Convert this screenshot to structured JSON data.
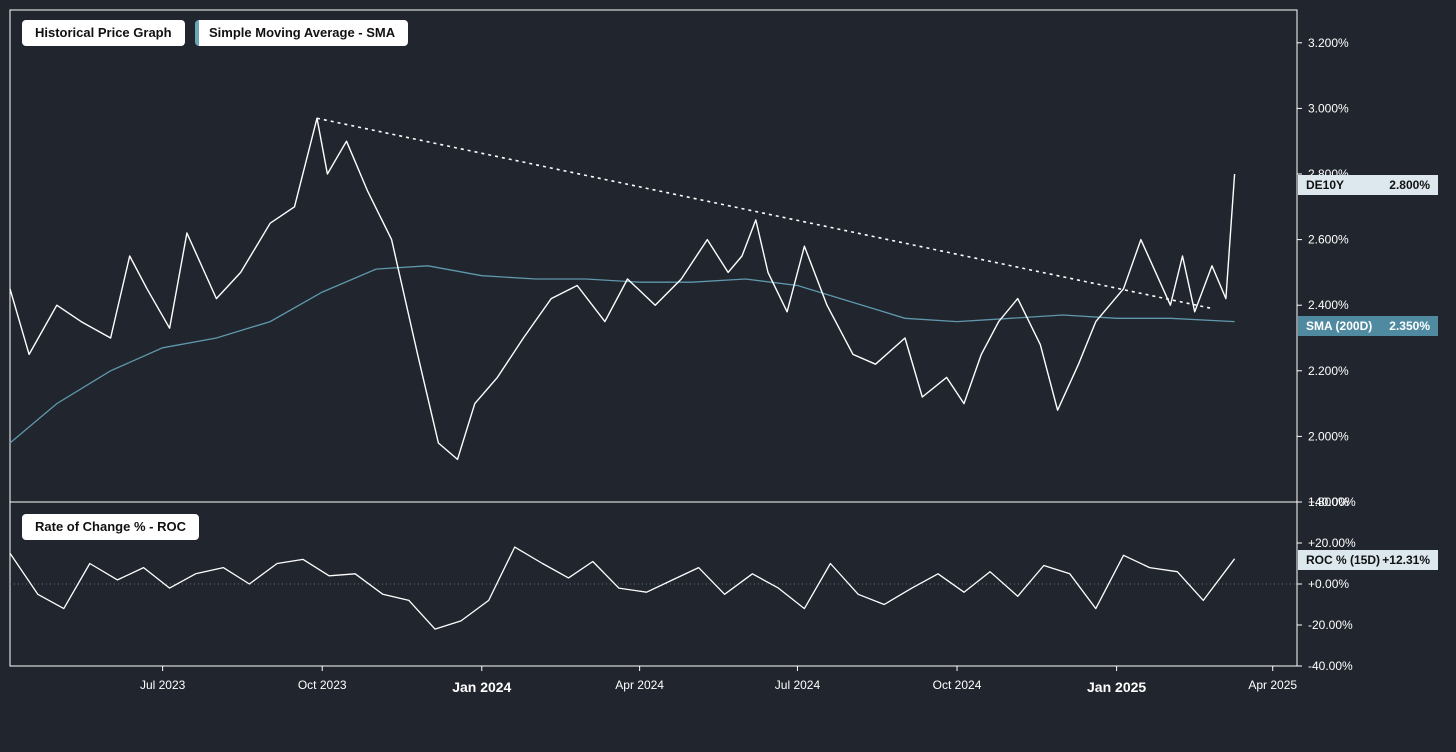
{
  "legend": {
    "price": "Historical Price Graph",
    "sma": "Simple Moving Average - SMA",
    "roc": "Rate of Change % - ROC"
  },
  "tags": {
    "price_name": "DE10Y",
    "price_value": "2.800%",
    "sma_name": "SMA (200D)",
    "sma_value": "2.350%",
    "roc_name": "ROC % (15D)",
    "roc_value": "+12.31%"
  },
  "colors": {
    "background": "#21252d",
    "price": "#ffffff",
    "sma": "#5f98ad",
    "frame": "#ffffff"
  },
  "chart_data": [
    {
      "type": "line",
      "series": [
        {
          "name": "DE10Y",
          "x": [
            "2023-04-04",
            "2023-04-15",
            "2023-05-01",
            "2023-05-15",
            "2023-06-01",
            "2023-06-12",
            "2023-06-22",
            "2023-07-05",
            "2023-07-15",
            "2023-08-01",
            "2023-08-15",
            "2023-09-01",
            "2023-09-15",
            "2023-09-28",
            "2023-10-04",
            "2023-10-15",
            "2023-10-27",
            "2023-11-10",
            "2023-11-25",
            "2023-12-07",
            "2023-12-18",
            "2023-12-28",
            "2024-01-10",
            "2024-01-25",
            "2024-02-10",
            "2024-02-25",
            "2024-03-12",
            "2024-03-25",
            "2024-04-10",
            "2024-04-25",
            "2024-05-10",
            "2024-05-22",
            "2024-05-30",
            "2024-06-07",
            "2024-06-14",
            "2024-06-25",
            "2024-07-05",
            "2024-07-18",
            "2024-08-02",
            "2024-08-15",
            "2024-09-01",
            "2024-09-11",
            "2024-09-25",
            "2024-10-05",
            "2024-10-15",
            "2024-10-25",
            "2024-11-05",
            "2024-11-18",
            "2024-11-28",
            "2024-12-10",
            "2024-12-20",
            "2025-01-05",
            "2025-01-15",
            "2025-02-01",
            "2025-02-08",
            "2025-02-15",
            "2025-02-25",
            "2025-03-05",
            "2025-03-10"
          ],
          "y": [
            2.45,
            2.25,
            2.4,
            2.35,
            2.3,
            2.55,
            2.45,
            2.33,
            2.62,
            2.42,
            2.5,
            2.65,
            2.7,
            2.97,
            2.8,
            2.9,
            2.75,
            2.6,
            2.25,
            1.98,
            1.93,
            2.1,
            2.18,
            2.3,
            2.42,
            2.46,
            2.35,
            2.48,
            2.4,
            2.48,
            2.6,
            2.5,
            2.55,
            2.66,
            2.5,
            2.38,
            2.58,
            2.4,
            2.25,
            2.22,
            2.3,
            2.12,
            2.18,
            2.1,
            2.25,
            2.35,
            2.42,
            2.28,
            2.08,
            2.22,
            2.35,
            2.45,
            2.6,
            2.4,
            2.55,
            2.38,
            2.52,
            2.42,
            2.8
          ]
        },
        {
          "name": "SMA (200D)",
          "x": [
            "2023-04-04",
            "2023-05-01",
            "2023-06-01",
            "2023-07-01",
            "2023-08-01",
            "2023-09-01",
            "2023-10-01",
            "2023-11-01",
            "2023-12-01",
            "2024-01-01",
            "2024-02-01",
            "2024-03-01",
            "2024-04-01",
            "2024-05-01",
            "2024-06-01",
            "2024-07-01",
            "2024-08-01",
            "2024-09-01",
            "2024-10-01",
            "2024-11-01",
            "2024-12-01",
            "2025-01-01",
            "2025-02-01",
            "2025-03-10"
          ],
          "y": [
            1.98,
            2.1,
            2.2,
            2.27,
            2.3,
            2.35,
            2.44,
            2.51,
            2.52,
            2.49,
            2.48,
            2.48,
            2.47,
            2.47,
            2.48,
            2.46,
            2.41,
            2.36,
            2.35,
            2.36,
            2.37,
            2.36,
            2.36,
            2.35
          ]
        }
      ],
      "trendline": {
        "x": [
          "2023-09-28",
          "2025-02-25"
        ],
        "y": [
          2.97,
          2.39
        ]
      },
      "y_ticks": [
        "1.800%",
        "2.000%",
        "2.200%",
        "2.400%",
        "2.600%",
        "2.800%",
        "3.000%",
        "3.200%"
      ],
      "ylim": [
        1.8,
        3.3
      ],
      "xlim": [
        "2023-04-04",
        "2025-04-15"
      ],
      "grid": false
    },
    {
      "type": "line",
      "series": [
        {
          "name": "ROC % (15D)",
          "x": [
            "2023-04-04",
            "2023-04-20",
            "2023-05-05",
            "2023-05-20",
            "2023-06-05",
            "2023-06-20",
            "2023-07-05",
            "2023-07-20",
            "2023-08-05",
            "2023-08-20",
            "2023-09-05",
            "2023-09-20",
            "2023-10-05",
            "2023-10-20",
            "2023-11-05",
            "2023-11-20",
            "2023-12-05",
            "2023-12-20",
            "2024-01-05",
            "2024-01-20",
            "2024-02-05",
            "2024-02-20",
            "2024-03-05",
            "2024-03-20",
            "2024-04-05",
            "2024-04-20",
            "2024-05-05",
            "2024-05-20",
            "2024-06-05",
            "2024-06-20",
            "2024-07-05",
            "2024-07-20",
            "2024-08-05",
            "2024-08-20",
            "2024-09-05",
            "2024-09-20",
            "2024-10-05",
            "2024-10-20",
            "2024-11-05",
            "2024-11-20",
            "2024-12-05",
            "2024-12-20",
            "2025-01-05",
            "2025-01-20",
            "2025-02-05",
            "2025-02-20",
            "2025-03-10"
          ],
          "y": [
            15,
            -5,
            -12,
            10,
            2,
            8,
            -2,
            5,
            8,
            0,
            10,
            12,
            4,
            5,
            -5,
            -8,
            -22,
            -18,
            -8,
            18,
            10,
            3,
            11,
            -2,
            -4,
            2,
            8,
            -5,
            5,
            -2,
            -12,
            10,
            -5,
            -10,
            -2,
            5,
            -4,
            6,
            -6,
            9,
            5,
            -12,
            14,
            8,
            6,
            -8,
            12.31
          ]
        }
      ],
      "y_ticks": [
        "-40.00%",
        "-20.00%",
        "+0.00%",
        "+20.00%",
        "+40.00%"
      ],
      "ylim": [
        -40,
        40
      ],
      "zero_line": true
    }
  ],
  "x_ticks": [
    {
      "label": "Jul 2023",
      "date": "2023-07-01",
      "major": false
    },
    {
      "label": "Oct 2023",
      "date": "2023-10-01",
      "major": false
    },
    {
      "label": "Jan 2024",
      "date": "2024-01-01",
      "major": true
    },
    {
      "label": "Apr 2024",
      "date": "2024-04-01",
      "major": false
    },
    {
      "label": "Jul 2024",
      "date": "2024-07-01",
      "major": false
    },
    {
      "label": "Oct 2024",
      "date": "2024-10-01",
      "major": false
    },
    {
      "label": "Jan 2025",
      "date": "2025-01-01",
      "major": true
    },
    {
      "label": "Apr 2025",
      "date": "2025-04-01",
      "major": false
    }
  ]
}
